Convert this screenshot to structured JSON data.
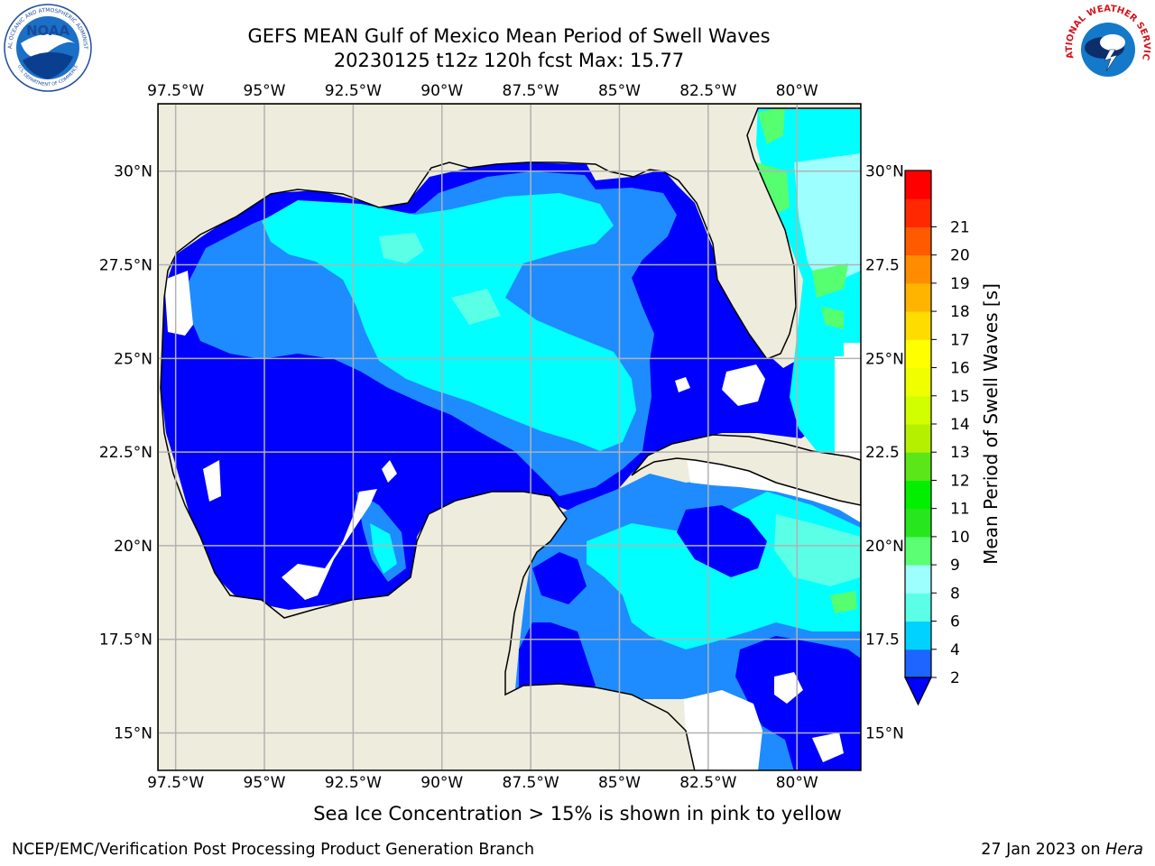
{
  "header": {
    "title_line1": "GEFS MEAN Gulf of Mexico Mean Period of Swell Waves",
    "title_line2": "20230125 t12z 120h fcst   Max: 15.77"
  },
  "map": {
    "lon_labels": [
      "97.5°W",
      "95°W",
      "92.5°W",
      "90°W",
      "87.5°W",
      "85°W",
      "82.5°W",
      "80°W"
    ],
    "lon_values": [
      -97.5,
      -95,
      -92.5,
      -90,
      -87.5,
      -85,
      -82.5,
      -80
    ],
    "lat_labels": [
      "30°N",
      "27.5°N",
      "25°N",
      "22.5°N",
      "20°N",
      "17.5°N",
      "15°N"
    ],
    "lat_values": [
      30,
      27.5,
      25,
      22.5,
      20,
      17.5,
      15
    ],
    "lat_labels_right": [
      "30°N",
      "27.5",
      "25°N",
      "22.5",
      "20°N",
      "17.5",
      "15°N"
    ],
    "lon_range": [
      -98,
      -78.2
    ],
    "lat_range": [
      14,
      31.8
    ],
    "colors": {
      "land": "#eeecdc",
      "grid": "#b2b2b2",
      "level_2_4": "#0000ff",
      "level_4_6": "#1e8cff",
      "level_6_8": "#00ffff",
      "level_8_9": "#5affe6",
      "level_9_10": "#9effff",
      "level_10_11": "#55ff70",
      "level_11_12": "#00e600",
      "level_12_13": "#5ae619",
      "level_13_14": "#c8ff00",
      "level_15_16": "#ffff00"
    }
  },
  "colorbar": {
    "label": "Mean Period of Swell Waves [s]",
    "ticks": [
      "2",
      "4",
      "6",
      "8",
      "9",
      "10",
      "11",
      "12",
      "13",
      "14",
      "15",
      "16",
      "17",
      "18",
      "19",
      "20",
      "21"
    ],
    "colors": [
      "#1e64ff",
      "#00d2ff",
      "#5affe6",
      "#9effff",
      "#5aff73",
      "#28e61e",
      "#00f000",
      "#5ae619",
      "#b4f000",
      "#d2ff00",
      "#f0ff00",
      "#ffff00",
      "#ffdc00",
      "#ffb400",
      "#ff8c00",
      "#ff5a00",
      "#ff2800",
      "#ff0000"
    ],
    "extend_color": "#0000ff"
  },
  "logos": {
    "noaa": {
      "text": "NOAA",
      "ring_text": "NATIONAL OCEANIC AND ATMOSPHERIC ADMINISTRATION",
      "ring_text_bottom": "U.S. DEPARTMENT OF COMMERCE"
    },
    "nws": {
      "ring_text": "NATIONAL WEATHER SERVICE"
    }
  },
  "footer": {
    "note": "Sea Ice Concentration > 15% is shown in pink to yellow",
    "left": "NCEP/EMC/Verification Post Processing Product Generation Branch",
    "right_date": "27 Jan 2023 on",
    "right_host": "Hera"
  }
}
